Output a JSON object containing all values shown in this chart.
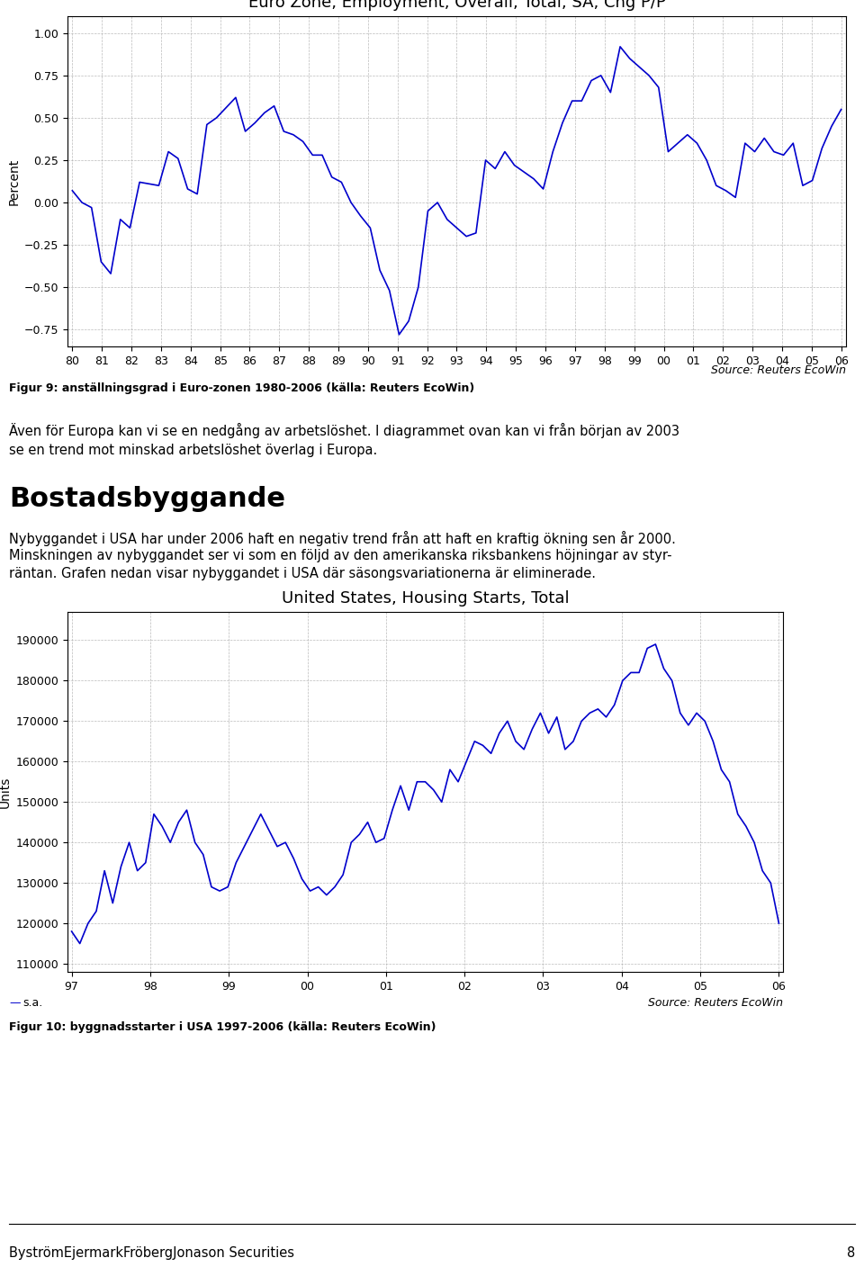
{
  "chart1_title": "Euro Zone, Employment, Overall, Total, SA, Chg P/P",
  "chart1_ylabel": "Percent",
  "chart1_xlabels": [
    "80",
    "81",
    "82",
    "83",
    "84",
    "85",
    "86",
    "87",
    "88",
    "89",
    "90",
    "91",
    "92",
    "93",
    "94",
    "95",
    "96",
    "97",
    "98",
    "99",
    "00",
    "01",
    "02",
    "03",
    "04",
    "05",
    "06"
  ],
  "chart1_ylim": [
    -0.85,
    1.1
  ],
  "chart1_yticks": [
    -0.75,
    -0.5,
    -0.25,
    0.0,
    0.25,
    0.5,
    0.75,
    1.0
  ],
  "chart1_data": [
    0.07,
    0.0,
    -0.03,
    -0.35,
    -0.42,
    -0.1,
    -0.15,
    0.12,
    0.11,
    0.1,
    0.3,
    0.26,
    0.08,
    0.05,
    0.46,
    0.5,
    0.56,
    0.62,
    0.42,
    0.47,
    0.53,
    0.57,
    0.42,
    0.4,
    0.36,
    0.28,
    0.28,
    0.15,
    0.12,
    0.0,
    -0.08,
    -0.15,
    -0.4,
    -0.52,
    -0.78,
    -0.7,
    -0.5,
    -0.05,
    0.0,
    -0.1,
    -0.15,
    -0.2,
    -0.18,
    0.25,
    0.2,
    0.3,
    0.22,
    0.18,
    0.14,
    0.08,
    0.3,
    0.47,
    0.6,
    0.6,
    0.72,
    0.75,
    0.65,
    0.92,
    0.85,
    0.8,
    0.75,
    0.68,
    0.3,
    0.35,
    0.4,
    0.35,
    0.25,
    0.1,
    0.07,
    0.03,
    0.35,
    0.3,
    0.38,
    0.3,
    0.28,
    0.35,
    0.1,
    0.13,
    0.32,
    0.45,
    0.55
  ],
  "chart1_source": "Source: Reuters EcoWin",
  "chart1_caption": "Figur 9: anställningsgrad i Euro-zonen 1980-2006 (källa: Reuters EcoWin)",
  "text_para": "Även för Europa kan vi se en nedgång av arbetslöshet. I diagrammet ovan kan vi från början av 2003\nse en trend mot minskad arbetslöshet överlag i Europa.",
  "section_title": "Bostadsbyggande",
  "section_line1": "Nybyggandet i USA har under 2006 haft en negativ trend från att haft en kraftig ökning sen år 2000.",
  "section_line2": "Minskningen av nybyggandet ser vi som en följd av den amerikanska riksbankens höjningar av styr-",
  "section_line3": "räntan. Grafen nedan visar nybyggandet i USA där säsongsvariationerna är eliminerade.",
  "chart2_title": "United States, Housing Starts, Total",
  "chart2_ylabel": "Units",
  "chart2_xlabels": [
    "97",
    "98",
    "99",
    "00",
    "01",
    "02",
    "03",
    "04",
    "05",
    "06"
  ],
  "chart2_ylim": [
    108000,
    197000
  ],
  "chart2_yticks": [
    110000,
    120000,
    130000,
    140000,
    150000,
    160000,
    170000,
    180000,
    190000
  ],
  "chart2_data": [
    118000,
    115000,
    120000,
    123000,
    133000,
    125000,
    134000,
    140000,
    133000,
    135000,
    147000,
    144000,
    140000,
    145000,
    148000,
    140000,
    137000,
    129000,
    128000,
    129000,
    135000,
    139000,
    143000,
    147000,
    143000,
    139000,
    140000,
    136000,
    131000,
    128000,
    129000,
    127000,
    129000,
    132000,
    140000,
    142000,
    145000,
    140000,
    141000,
    148000,
    154000,
    148000,
    155000,
    155000,
    153000,
    150000,
    158000,
    155000,
    160000,
    165000,
    164000,
    162000,
    167000,
    170000,
    165000,
    163000,
    168000,
    172000,
    167000,
    171000,
    163000,
    165000,
    170000,
    172000,
    173000,
    171000,
    174000,
    180000,
    182000,
    182000,
    188000,
    189000,
    183000,
    180000,
    172000,
    169000,
    172000,
    170000,
    165000,
    158000,
    155000,
    147000,
    144000,
    140000,
    133000,
    130000,
    120000
  ],
  "chart2_legend": "s.a.",
  "chart2_source": "Source: Reuters EcoWin",
  "chart2_caption": "Figur 10: byggnadsstarter i USA 1997-2006 (källa: Reuters EcoWin)",
  "footer_text": "ByströmEjermarkFröbergJonason Securities",
  "footer_page": "8",
  "line_color": "#0000CC",
  "bg_color": "#FFFFFF",
  "grid_color": "#AAAAAA",
  "title_fontsize": 13,
  "axis_fontsize": 10,
  "label_fontsize": 9,
  "caption_fontsize": 9,
  "section_title_fontsize": 22,
  "body_fontsize": 10.5,
  "footer_fontsize": 10.5
}
